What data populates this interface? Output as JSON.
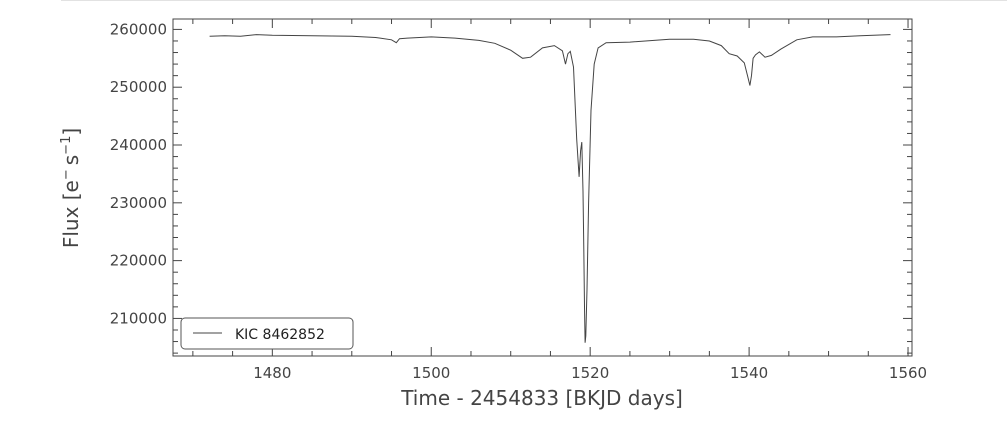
{
  "chart_data": {
    "type": "line",
    "xlabel": "Time - 2454833 [BKJD days]",
    "ylabel": "Flux [e⁻s⁻¹]",
    "ylabel_parts": {
      "main": "Flux [e",
      "sup1": "−",
      "mid": "s",
      "sup2": "−1",
      "end": "]"
    },
    "xlim": [
      1467.5,
      1560.5
    ],
    "ylim": [
      203500,
      261800
    ],
    "x_ticks": [
      1480,
      1500,
      1520,
      1540,
      1560
    ],
    "y_ticks": [
      210000,
      220000,
      230000,
      240000,
      250000,
      260000
    ],
    "grid": false,
    "legend_position": "lower-left",
    "series": [
      {
        "name": "KIC 8462852",
        "color": "#444444",
        "x": [
          1472.1,
          1474,
          1476,
          1478,
          1480,
          1485,
          1490,
          1493,
          1495,
          1495.6,
          1496,
          1497,
          1500,
          1503,
          1506,
          1508,
          1510,
          1511.5,
          1512.5,
          1514,
          1515.5,
          1516.5,
          1516.9,
          1517.2,
          1517.5,
          1517.9,
          1518.3,
          1518.6,
          1518.8,
          1518.95,
          1519.1,
          1519.2,
          1519.28,
          1519.36,
          1519.45,
          1519.6,
          1519.8,
          1520.1,
          1520.5,
          1521,
          1522,
          1525,
          1530,
          1533,
          1535,
          1536.5,
          1537.5,
          1538.5,
          1539.4,
          1539.8,
          1540.1,
          1540.3,
          1540.5,
          1540.8,
          1541.3,
          1542,
          1542.8,
          1544,
          1546,
          1548,
          1551,
          1554,
          1557.8
        ],
        "y": [
          258800,
          258900,
          258800,
          259100,
          259000,
          258900,
          258800,
          258600,
          258200,
          257700,
          258400,
          258500,
          258700,
          258500,
          258100,
          257600,
          256400,
          255000,
          255200,
          256800,
          257200,
          256300,
          254000,
          255800,
          256200,
          253500,
          241000,
          234500,
          239000,
          240500,
          232000,
          222000,
          212000,
          205800,
          207000,
          215000,
          230000,
          246000,
          254000,
          256800,
          257700,
          257800,
          258300,
          258300,
          258000,
          257200,
          255800,
          255400,
          254200,
          252000,
          250300,
          252000,
          255000,
          255600,
          256100,
          255200,
          255500,
          256600,
          258200,
          258700,
          258700,
          258900,
          259100
        ]
      }
    ]
  }
}
